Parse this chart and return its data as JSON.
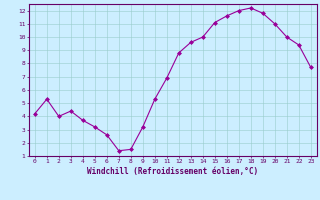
{
  "x": [
    0,
    1,
    2,
    3,
    4,
    5,
    6,
    7,
    8,
    9,
    10,
    11,
    12,
    13,
    14,
    15,
    16,
    17,
    18,
    19,
    20,
    21,
    22,
    23
  ],
  "y": [
    4.2,
    5.3,
    4.0,
    4.4,
    3.7,
    3.2,
    2.6,
    1.4,
    1.5,
    3.2,
    5.3,
    6.9,
    8.8,
    9.6,
    10.0,
    11.1,
    11.6,
    12.0,
    12.2,
    11.8,
    11.0,
    10.0,
    9.4,
    7.7
  ],
  "line_color": "#990099",
  "marker": "D",
  "marker_size": 2.0,
  "bg_color": "#cceeff",
  "grid_color": "#99cccc",
  "axis_color": "#660066",
  "xlabel": "Windchill (Refroidissement éolien,°C)",
  "xlim": [
    -0.5,
    23.5
  ],
  "ylim": [
    1,
    12.5
  ],
  "yticks": [
    1,
    2,
    3,
    4,
    5,
    6,
    7,
    8,
    9,
    10,
    11,
    12
  ],
  "xticks": [
    0,
    1,
    2,
    3,
    4,
    5,
    6,
    7,
    8,
    9,
    10,
    11,
    12,
    13,
    14,
    15,
    16,
    17,
    18,
    19,
    20,
    21,
    22,
    23
  ]
}
